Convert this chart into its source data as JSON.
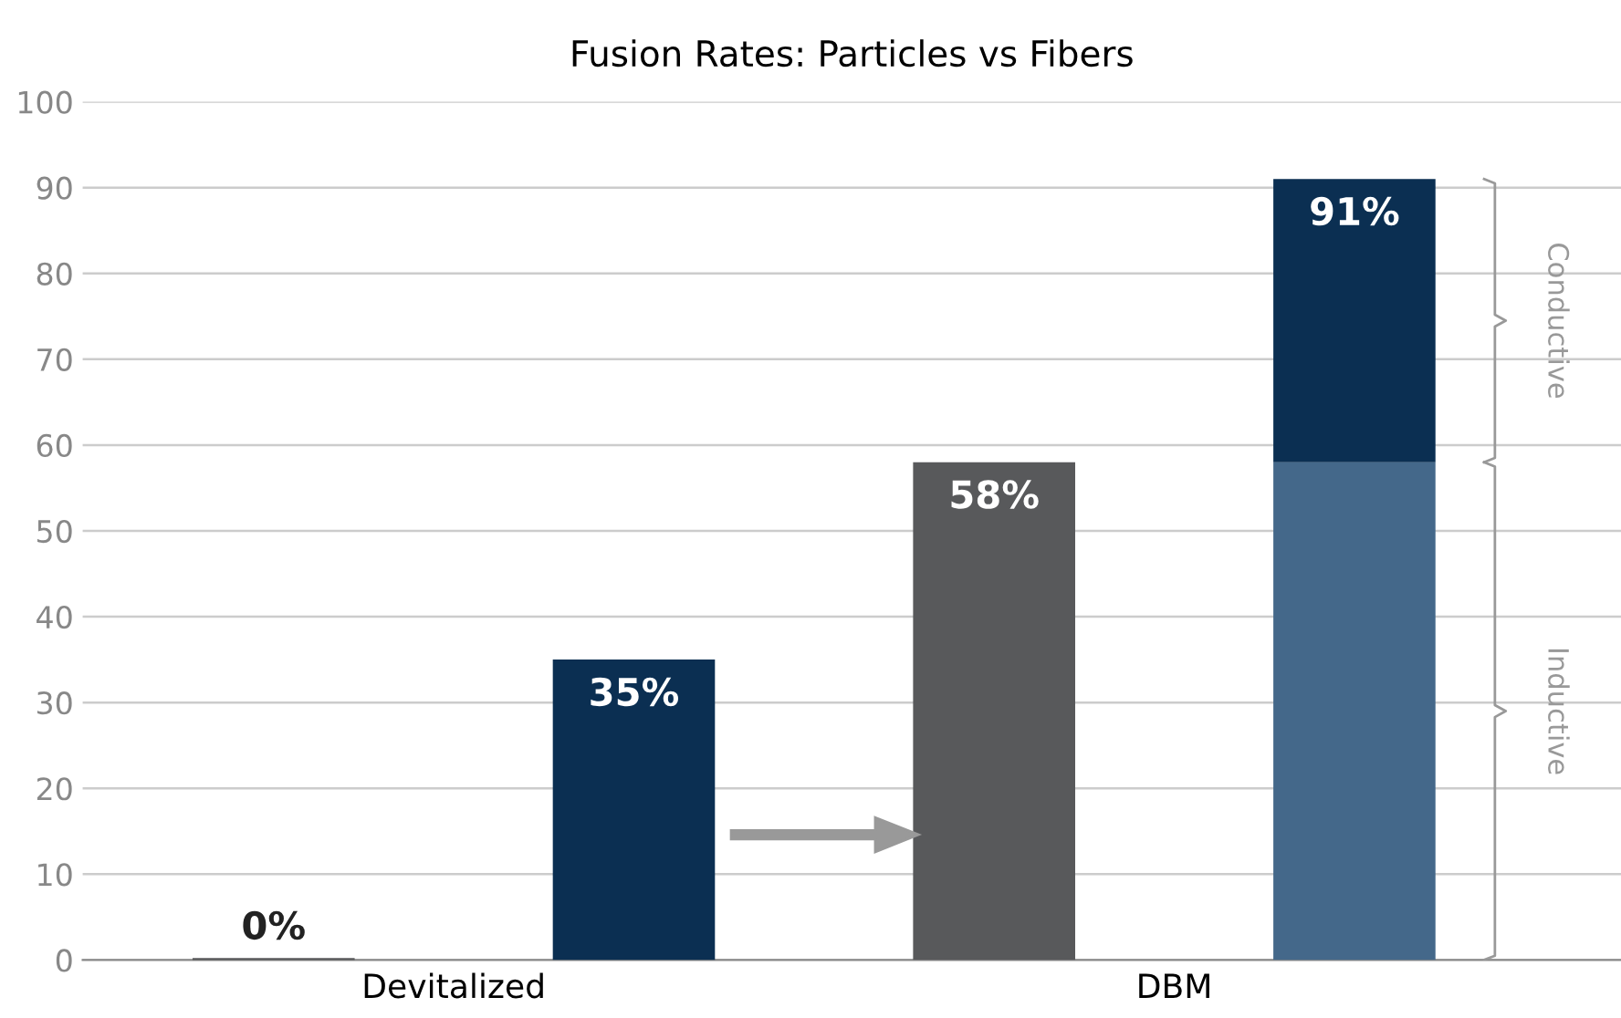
{
  "chart_data": {
    "type": "bar",
    "title": "Fusion Rates: Particles vs Fibers",
    "categories": [
      null,
      null,
      null,
      null
    ],
    "stacked": true,
    "series": [
      {
        "colors": [
          "#58595b",
          "#0b2f52",
          "#58595b",
          "#44688a"
        ],
        "values": [
          0,
          35,
          58,
          58
        ]
      },
      {
        "color": "#0b2f52",
        "values": [
          null,
          null,
          null,
          33
        ]
      }
    ],
    "totals": [
      "0%",
      "35%",
      "58%",
      "91%"
    ],
    "ylim": [
      0,
      100
    ],
    "yticks": [
      0,
      10,
      20,
      30,
      40,
      50,
      60,
      70,
      80,
      90,
      100
    ],
    "grid": "y",
    "annotations": [
      "Devitalized",
      "DBM",
      "Conductive",
      "Inductive"
    ]
  }
}
